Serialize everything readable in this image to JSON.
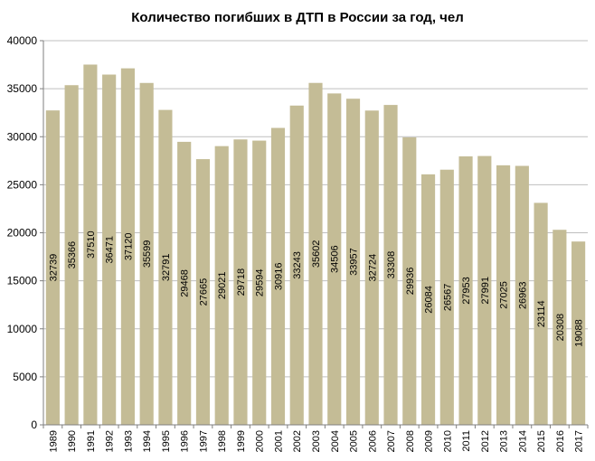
{
  "chart_data": {
    "type": "bar",
    "title": "Количество погибших  в ДТП в России за год, чел",
    "xlabel": "",
    "ylabel": "",
    "ylim": [
      0,
      40000
    ],
    "yticks": [
      "0",
      "5000",
      "10000",
      "15000",
      "20000",
      "25000",
      "30000",
      "35000",
      "40000"
    ],
    "grid": "horizontal",
    "legend": "none",
    "colors": {
      "bar": "#c4bc96",
      "grid": "#bfbfbf",
      "axis": "#7f7f7f"
    },
    "categories": [
      "1989",
      "1990",
      "1991",
      "1992",
      "1993",
      "1994",
      "1995",
      "1996",
      "1997",
      "1998",
      "1999",
      "2000",
      "2001",
      "2002",
      "2003",
      "2004",
      "2005",
      "2006",
      "2007",
      "2008",
      "2009",
      "2010",
      "2011",
      "2012",
      "2013",
      "2014",
      "2015",
      "2016",
      "2017"
    ],
    "values": [
      32739,
      35366,
      37510,
      36471,
      37120,
      35599,
      32791,
      29468,
      27665,
      29021,
      29718,
      29594,
      30916,
      33243,
      35602,
      34506,
      33957,
      32724,
      33308,
      29936,
      26084,
      26567,
      27953,
      27991,
      27025,
      26963,
      23114,
      20308,
      19088
    ],
    "data_labels": [
      "32739",
      "35366",
      "37510",
      "36471",
      "37120",
      "35599",
      "32791",
      "29468",
      "27665",
      "29021",
      "29718",
      "29594",
      "30916",
      "33243",
      "35602",
      "34506",
      "33957",
      "32724",
      "33308",
      "29936",
      "26084",
      "26567",
      "27953",
      "27991",
      "27025",
      "26963",
      "23114",
      "20308",
      "19088"
    ]
  }
}
